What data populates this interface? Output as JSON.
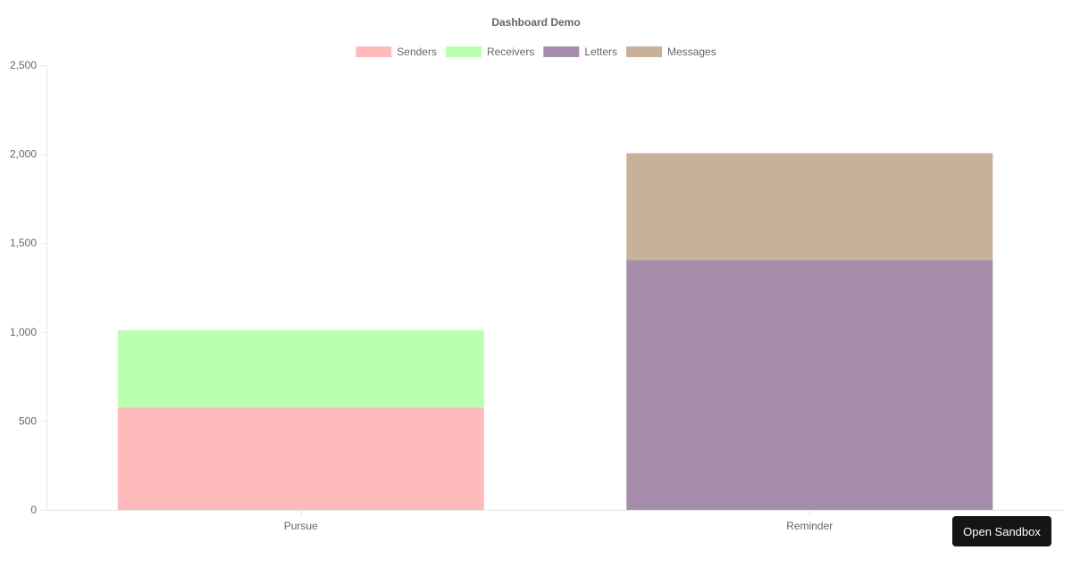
{
  "button": {
    "open_sandbox": "Open Sandbox"
  },
  "chart_data": {
    "type": "bar",
    "stacked": true,
    "title": "Dashboard Demo",
    "categories": [
      "Pursue",
      "Reminder"
    ],
    "series": [
      {
        "name": "Senders",
        "values": [
          575,
          0
        ],
        "color": "#ffbbbb"
      },
      {
        "name": "Receivers",
        "values": [
          435,
          0
        ],
        "color": "#bbffb1"
      },
      {
        "name": "Letters",
        "values": [
          0,
          1405
        ],
        "color": "#a68dac"
      },
      {
        "name": "Messages",
        "values": [
          0,
          600
        ],
        "color": "#c8b199"
      }
    ],
    "y_ticks": [
      "0",
      "500",
      "1,000",
      "1,500",
      "2,000",
      "2,500"
    ],
    "ylim": [
      0,
      2500
    ],
    "legend_position": "top",
    "grid": false
  }
}
